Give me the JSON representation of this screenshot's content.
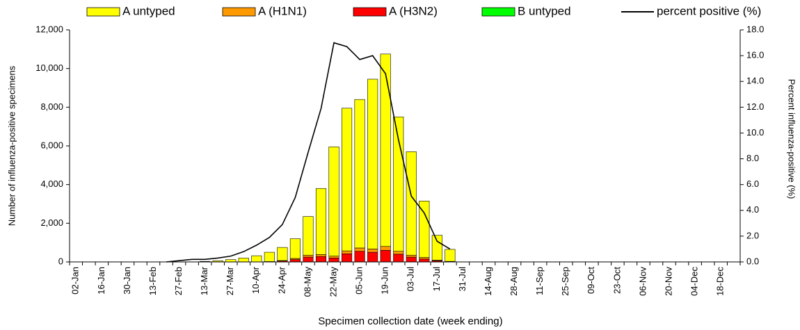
{
  "chart_data": {
    "type": "bar",
    "x_label": "Specimen collection date (week ending)",
    "y_label": "Number of influenza-positive specimens",
    "y2_label": "Percent influenza-positive (%)",
    "categories": [
      "02-Jan",
      null,
      "16-Jan",
      null,
      "30-Jan",
      null,
      "13-Feb",
      null,
      "27-Feb",
      null,
      "13-Mar",
      null,
      "27-Mar",
      null,
      "10-Apr",
      null,
      "24-Apr",
      null,
      "08-May",
      null,
      "22-May",
      null,
      "05-Jun",
      null,
      "19-Jun",
      null,
      "03-Jul",
      null,
      "17-Jul",
      null,
      "31-Jul",
      null,
      "14-Aug",
      null,
      "28-Aug",
      null,
      "11-Sep",
      null,
      "25-Sep",
      null,
      "09-Oct",
      null,
      "23-Oct",
      null,
      "06-Nov",
      null,
      "20-Nov",
      null,
      "04-Dec",
      null,
      "18-Dec",
      null
    ],
    "stacked": true,
    "series": [
      {
        "name": "A untyped",
        "color": "#ffff00",
        "values": [
          0,
          0,
          0,
          0,
          0,
          0,
          0,
          0,
          0,
          0,
          30,
          60,
          120,
          200,
          320,
          480,
          680,
          1020,
          2000,
          3420,
          5650,
          7380,
          7680,
          8780,
          9950,
          6950,
          5350,
          2920,
          1290,
          620,
          0,
          0,
          0,
          0,
          0,
          0,
          0,
          0,
          0,
          0,
          0,
          0,
          0,
          0,
          0,
          0,
          0,
          0,
          0,
          0,
          0,
          0
        ]
      },
      {
        "name": "A (H1N1)",
        "color": "#ff9900",
        "values": [
          0,
          0,
          0,
          0,
          0,
          0,
          0,
          0,
          0,
          0,
          0,
          0,
          0,
          0,
          0,
          0,
          20,
          60,
          100,
          100,
          100,
          150,
          170,
          170,
          200,
          150,
          100,
          80,
          30,
          10,
          0,
          0,
          0,
          0,
          0,
          0,
          0,
          0,
          0,
          0,
          0,
          0,
          0,
          0,
          0,
          0,
          0,
          0,
          0,
          0,
          0,
          0
        ]
      },
      {
        "name": "A (H3N2)",
        "color": "#ff0000",
        "values": [
          0,
          0,
          0,
          0,
          0,
          0,
          0,
          0,
          0,
          0,
          0,
          0,
          0,
          0,
          0,
          20,
          50,
          120,
          250,
          280,
          200,
          420,
          550,
          500,
          600,
          400,
          250,
          150,
          60,
          20,
          0,
          0,
          0,
          0,
          0,
          0,
          0,
          0,
          0,
          0,
          0,
          0,
          0,
          0,
          0,
          0,
          0,
          0,
          0,
          0,
          0,
          0
        ]
      },
      {
        "name": "B untyped",
        "color": "#00ff00",
        "values": [
          0,
          0,
          0,
          0,
          0,
          0,
          0,
          0,
          0,
          0,
          0,
          0,
          0,
          0,
          0,
          0,
          0,
          0,
          0,
          0,
          0,
          0,
          0,
          0,
          0,
          0,
          0,
          0,
          0,
          0,
          0,
          0,
          0,
          0,
          0,
          0,
          0,
          0,
          0,
          0,
          0,
          0,
          0,
          0,
          0,
          0,
          0,
          0,
          0,
          0,
          0,
          0
        ]
      },
      {
        "name": "percent positive (%)",
        "type": "line",
        "axis": "y2",
        "color": "#000000",
        "values": [
          null,
          null,
          null,
          null,
          null,
          null,
          null,
          0,
          0.1,
          0.2,
          0.2,
          0.3,
          0.45,
          0.8,
          1.3,
          1.9,
          2.9,
          5.0,
          8.5,
          11.9,
          17.0,
          16.7,
          15.7,
          16.0,
          14.6,
          9.5,
          5.1,
          3.8,
          1.6,
          1.0,
          null,
          null,
          null,
          null,
          null,
          null,
          null,
          null,
          null,
          null,
          null,
          null,
          null,
          null,
          null,
          null,
          null,
          null,
          null,
          null,
          null,
          null
        ]
      }
    ],
    "ylim": [
      0,
      12000
    ],
    "yticks": [
      0,
      {
        "value": 2000,
        "label": "2,000"
      },
      {
        "value": 4000,
        "label": "4,000"
      },
      {
        "value": 6000,
        "label": "6,000"
      },
      {
        "value": 8000,
        "label": "8,000"
      },
      {
        "value": 10000,
        "label": "10,000"
      },
      {
        "value": 12000,
        "label": "12,000"
      }
    ],
    "y2lim": [
      0,
      18
    ],
    "y2ticks": [
      {
        "value": 0,
        "label": "0.0"
      },
      {
        "value": 2,
        "label": "2.0"
      },
      {
        "value": 4,
        "label": "4.0"
      },
      {
        "value": 6,
        "label": "6.0"
      },
      {
        "value": 8,
        "label": "8.0"
      },
      {
        "value": 10,
        "label": "10.0"
      },
      {
        "value": 12,
        "label": "12.0"
      },
      {
        "value": 14,
        "label": "14.0"
      },
      {
        "value": 16,
        "label": "16.0"
      },
      {
        "value": 18,
        "label": "18.0"
      }
    ],
    "grid": false,
    "legend": "top"
  }
}
